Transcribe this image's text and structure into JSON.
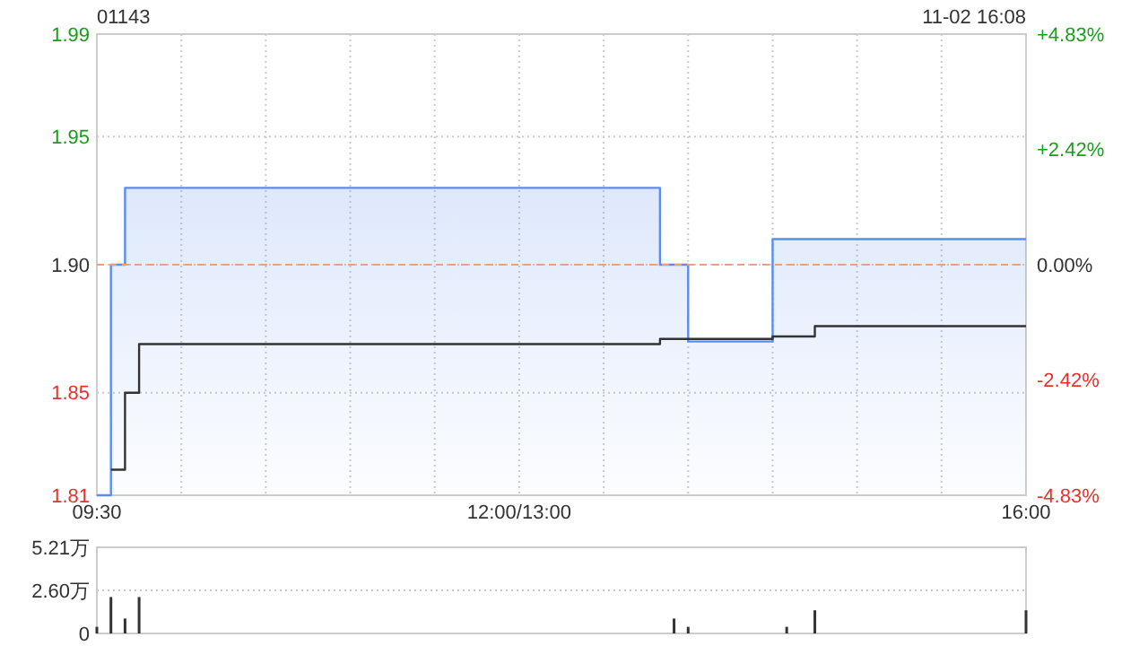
{
  "chart_data": [
    {
      "type": "area",
      "title": "01143",
      "annotations": [
        "11-02 16:08"
      ],
      "categories": [
        "09:30",
        null,
        null,
        null,
        null,
        null,
        null,
        null,
        null,
        null,
        null,
        null,
        null,
        null,
        null,
        null,
        null,
        null,
        null,
        null,
        null,
        null,
        null,
        null,
        null,
        null,
        null,
        null,
        null,
        null,
        "12:00/13:00",
        null,
        null,
        null,
        null,
        null,
        null,
        null,
        null,
        null,
        null,
        null,
        null,
        null,
        null,
        null,
        null,
        null,
        null,
        null,
        null,
        null,
        null,
        null,
        null,
        null,
        null,
        null,
        null,
        null,
        null,
        null,
        null,
        null,
        null,
        null,
        "16:00"
      ],
      "ylim": [
        1.81,
        1.99
      ],
      "yticks": [
        1.81,
        1.85,
        {
          "value": 1.9,
          "label": "1.90"
        },
        1.95,
        1.99
      ],
      "y2lim": [
        -4.83,
        4.83
      ],
      "y2ticks": [
        {
          "value": -4.83,
          "label": "-4.83%"
        },
        {
          "value": -2.42,
          "label": "-2.42%"
        },
        {
          "value": 0,
          "label": "0.00%"
        },
        {
          "value": 2.42,
          "label": "+2.42%"
        },
        {
          "value": 4.83,
          "label": "+4.83%"
        }
      ],
      "grid": true,
      "ref_lines": [
        {
          "axis": "y",
          "value": 1.9,
          "color": "#f0a070",
          "line_style": "dashed"
        }
      ],
      "series": [
        {
          "color": "#5b8def",
          "values": [
            1.81,
            1.9,
            1.93,
            1.93,
            1.93,
            1.93,
            1.93,
            1.93,
            1.93,
            1.93,
            1.93,
            1.93,
            1.93,
            1.93,
            1.93,
            1.93,
            1.93,
            1.93,
            1.93,
            1.93,
            1.93,
            1.93,
            1.93,
            1.93,
            1.93,
            1.93,
            1.93,
            1.93,
            1.93,
            1.93,
            1.93,
            1.93,
            1.93,
            1.93,
            1.93,
            1.93,
            1.93,
            1.93,
            1.93,
            1.93,
            1.9,
            1.9,
            1.87,
            1.87,
            1.87,
            1.87,
            1.87,
            1.87,
            1.91,
            1.91,
            1.91,
            1.91,
            1.91,
            1.91,
            1.91,
            1.91,
            1.91,
            1.91,
            1.91,
            1.91,
            1.91,
            1.91,
            1.91,
            1.91,
            1.91,
            1.91,
            1.91
          ]
        },
        {
          "type": "step",
          "color": "#333333",
          "values": [
            null,
            1.82,
            1.85,
            1.869,
            1.869,
            1.869,
            1.869,
            1.869,
            1.869,
            1.869,
            1.869,
            1.869,
            1.869,
            1.869,
            1.869,
            1.869,
            1.869,
            1.869,
            1.869,
            1.869,
            1.869,
            1.869,
            1.869,
            1.869,
            1.869,
            1.869,
            1.869,
            1.869,
            1.869,
            1.869,
            1.869,
            1.869,
            1.869,
            1.869,
            1.869,
            1.869,
            1.869,
            1.869,
            1.869,
            1.869,
            1.871,
            1.871,
            1.871,
            1.871,
            1.871,
            1.871,
            1.871,
            1.871,
            1.872,
            1.872,
            1.872,
            1.876,
            1.876,
            1.876,
            1.876,
            1.876,
            1.876,
            1.876,
            1.876,
            1.876,
            1.876,
            1.876,
            1.876,
            1.876,
            1.876,
            1.876,
            1.876
          ]
        }
      ]
    },
    {
      "type": "bar",
      "tick_labels": "y",
      "grid": "y",
      "color": "#333333",
      "categories": [
        null,
        null,
        null,
        null,
        null,
        null,
        null,
        null,
        null,
        null,
        null,
        null,
        null,
        null,
        null,
        null,
        null,
        null,
        null,
        null,
        null,
        null,
        null,
        null,
        null,
        null,
        null,
        null,
        null,
        null,
        null,
        null,
        null,
        null,
        null,
        null,
        null,
        null,
        null,
        null,
        null,
        null,
        null,
        null,
        null,
        null,
        null,
        null,
        null,
        null,
        null,
        null,
        null,
        null,
        null,
        null,
        null,
        null,
        null,
        null,
        null,
        null,
        null,
        null,
        null,
        null,
        null
      ],
      "ylim": [
        0,
        5.21
      ],
      "yticks": [
        0,
        {
          "value": 2.6,
          "label": "2.60万"
        },
        {
          "value": 5.21,
          "label": "5.21万"
        }
      ],
      "values": [
        0.4,
        2.2,
        0.9,
        2.2,
        null,
        null,
        null,
        null,
        null,
        null,
        null,
        null,
        null,
        null,
        null,
        null,
        null,
        null,
        null,
        null,
        null,
        null,
        null,
        null,
        null,
        null,
        null,
        null,
        null,
        null,
        null,
        null,
        null,
        null,
        null,
        null,
        null,
        null,
        null,
        null,
        null,
        0.9,
        0.4,
        null,
        null,
        null,
        null,
        null,
        null,
        0.4,
        null,
        1.4,
        null,
        null,
        null,
        null,
        null,
        null,
        null,
        null,
        null,
        null,
        null,
        null,
        null,
        null,
        1.4
      ]
    }
  ]
}
